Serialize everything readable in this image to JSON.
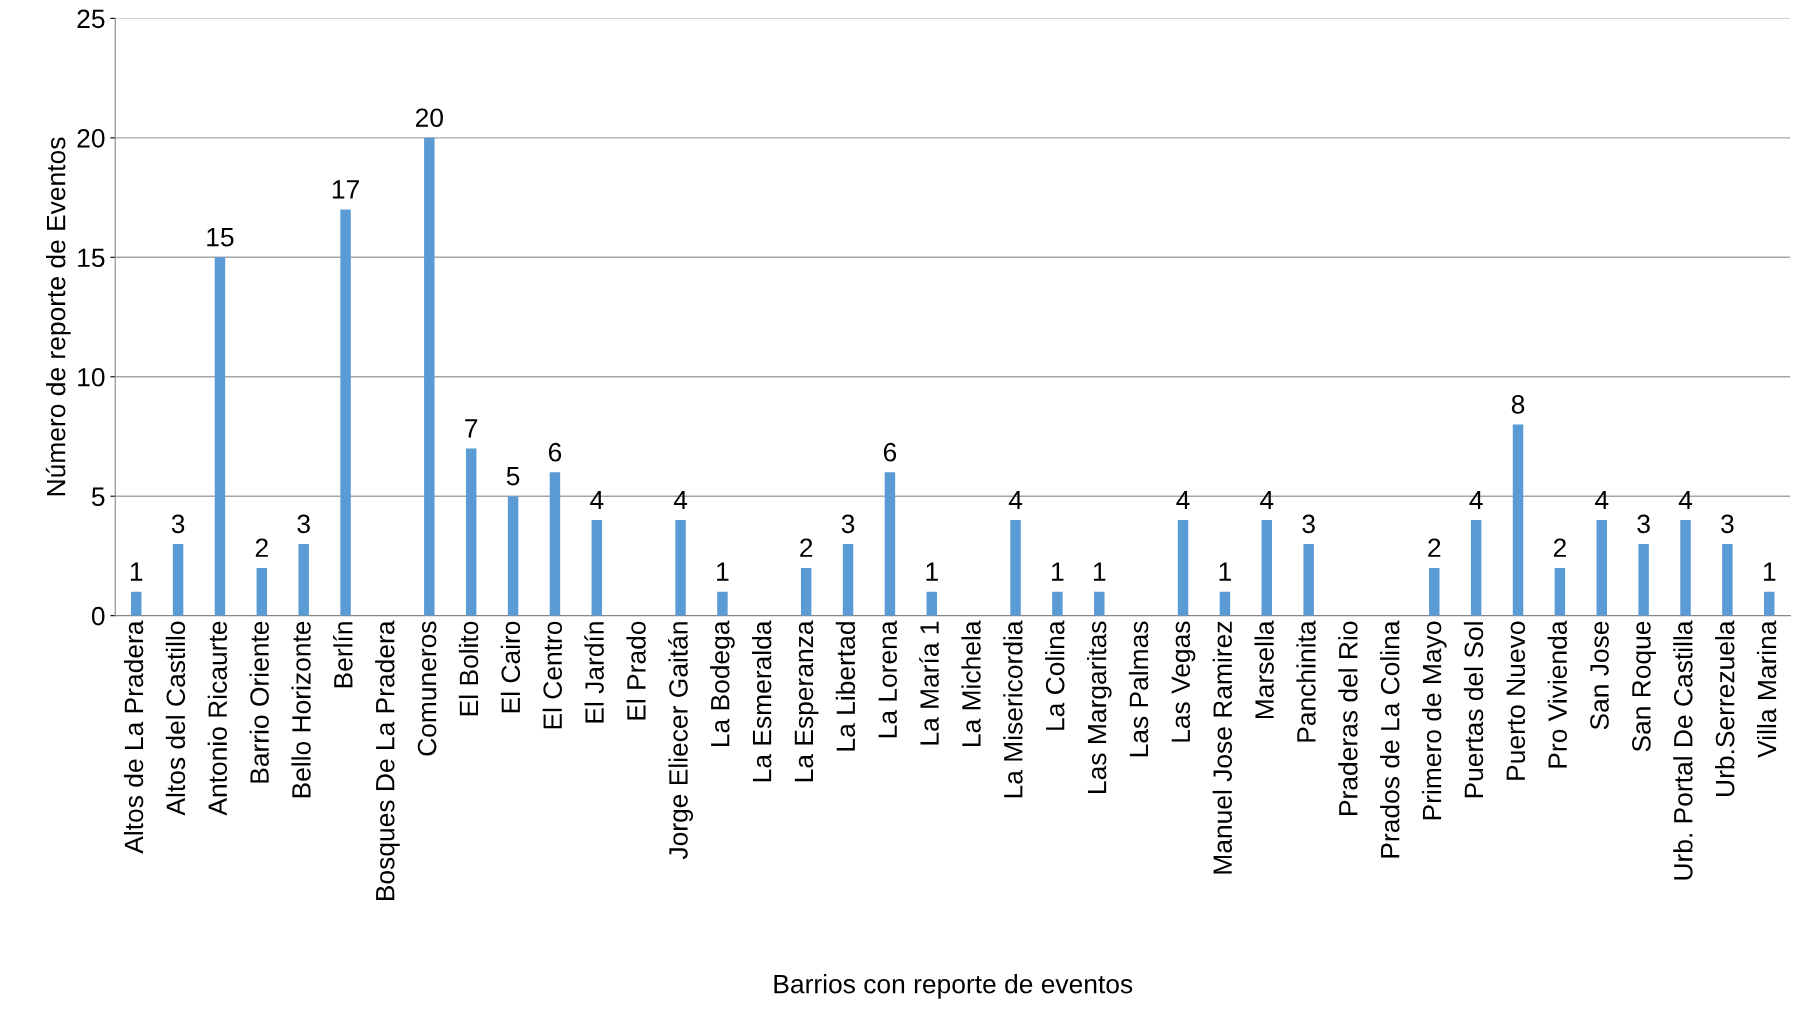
{
  "chart_data": {
    "type": "bar",
    "xlabel": "Barrios con reporte de eventos",
    "ylabel": "Número de reporte de Eventos",
    "categories": [
      "Altos de La Pradera",
      "Altos del Castillo",
      "Antonio Ricaurte",
      "Barrio Oriente",
      "Bello Horizonte",
      "Berlín",
      "Bosques De La Pradera",
      "Comuneros",
      "El Bolito",
      "El Cairo",
      "El Centro",
      "El Jardín",
      "El Prado",
      "Jorge Eliecer Gaitán",
      "La Bodega",
      "La Esmeralda",
      "La Esperanza",
      "La Libertad",
      "La Lorena",
      "La María 1",
      "La Michela",
      "La Misericordia",
      "La Colina",
      "Las Margaritas",
      "Las Palmas",
      "Las Vegas",
      "Manuel Jose Ramirez",
      "Marsella",
      "Panchinita",
      "Praderas del Rio",
      "Prados de La Colina",
      "Primero de Mayo",
      "Puertas del Sol",
      "Puerto Nuevo",
      "Pro Vivienda",
      "San Jose",
      "San Roque",
      "Urb. Portal De Castilla",
      "Urb.Serrezuela",
      "Villa Marina"
    ],
    "values": [
      1,
      3,
      15,
      2,
      3,
      17,
      0,
      20,
      7,
      5,
      6,
      4,
      0,
      4,
      1,
      0,
      2,
      3,
      6,
      1,
      0,
      4,
      1,
      1,
      0,
      4,
      1,
      4,
      3,
      0,
      0,
      2,
      4,
      8,
      2,
      4,
      3,
      4,
      3,
      1
    ],
    "value_labels": [
      "1",
      "3",
      "15",
      "2",
      "3",
      "17",
      null,
      "20",
      "7",
      "5",
      "6",
      "4",
      null,
      "4",
      "1",
      null,
      "2",
      "3",
      "6",
      "1",
      null,
      "4",
      "1",
      "1",
      null,
      "4",
      "1",
      "4",
      "3",
      null,
      null,
      "2",
      "4",
      "8",
      "2",
      "4",
      "3",
      "4",
      "3",
      "1"
    ],
    "color": "#5b9bd5",
    "ylim": [
      0,
      25
    ],
    "yticks": [
      0,
      5,
      10,
      15,
      20,
      25
    ],
    "grid": "y"
  }
}
